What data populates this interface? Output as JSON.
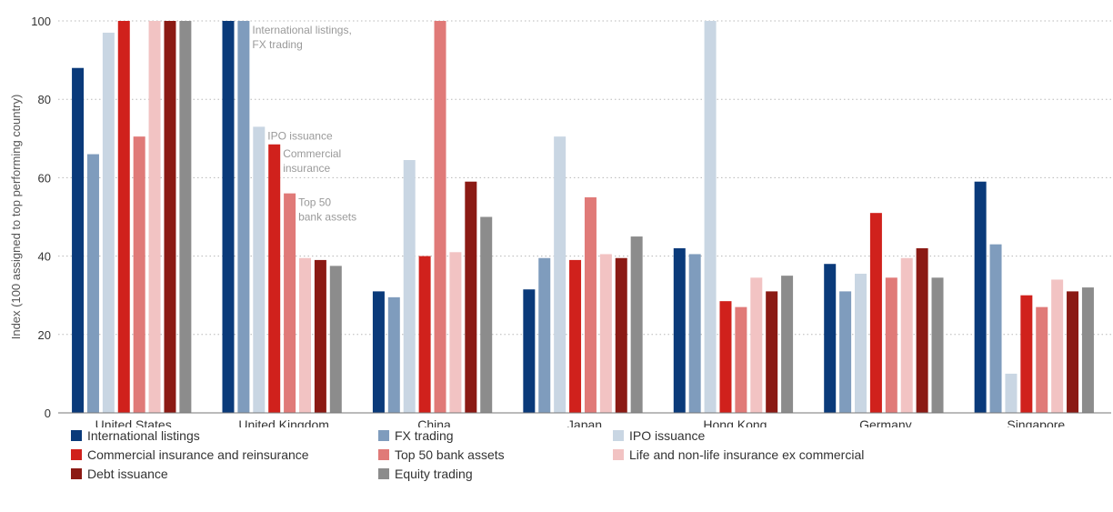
{
  "chart_data": {
    "type": "bar",
    "ylabel": "Index (100 assigned to top performing country)",
    "ylim": [
      0,
      100
    ],
    "yticks": [
      0,
      20,
      40,
      60,
      80,
      100
    ],
    "grid": true,
    "legend_position": "bottom",
    "categories": [
      "United States",
      "United Kingdom",
      "China",
      "Japan",
      "Hong Kong",
      "Germany",
      "Singapore"
    ],
    "series": [
      {
        "name": "International listings",
        "color": "#0a3a7a",
        "values": [
          88,
          100,
          31,
          31.5,
          42,
          38,
          59
        ]
      },
      {
        "name": "FX trading",
        "color": "#7f9cbd",
        "values": [
          66,
          100,
          29.5,
          39.5,
          40.5,
          31,
          43
        ]
      },
      {
        "name": "IPO issuance",
        "color": "#c9d6e3",
        "values": [
          97,
          73,
          64.5,
          70.5,
          100,
          35.5,
          10
        ]
      },
      {
        "name": "Commercial insurance and reinsurance",
        "color": "#d0211c",
        "values": [
          100,
          68.5,
          40,
          39,
          28.5,
          51,
          30
        ]
      },
      {
        "name": "Top 50 bank assets",
        "color": "#e07a78",
        "values": [
          70.5,
          56,
          100,
          55,
          27,
          34.5,
          27
        ]
      },
      {
        "name": "Life and non-life insurance ex commercial",
        "color": "#f2c3c3",
        "values": [
          100,
          39.5,
          41,
          40.5,
          34.5,
          39.5,
          34
        ]
      },
      {
        "name": "Debt issuance",
        "color": "#8b1a14",
        "values": [
          100,
          39,
          59,
          39.5,
          31,
          42,
          31
        ]
      },
      {
        "name": "Equity trading",
        "color": "#8c8c8c",
        "values": [
          100,
          37.5,
          50,
          45,
          35,
          34.5,
          32
        ]
      }
    ],
    "annotations": [
      {
        "category": "United Kingdom",
        "series": "FX trading",
        "lines": [
          "International listings,",
          "FX trading"
        ]
      },
      {
        "category": "United Kingdom",
        "series": "IPO issuance",
        "lines": [
          "IPO issuance"
        ]
      },
      {
        "category": "United Kingdom",
        "series": "Commercial insurance and reinsurance",
        "lines": [
          "Commercial",
          "insurance"
        ]
      },
      {
        "category": "United Kingdom",
        "series": "Top 50 bank assets",
        "lines": [
          "Top 50",
          "bank assets"
        ]
      }
    ]
  }
}
